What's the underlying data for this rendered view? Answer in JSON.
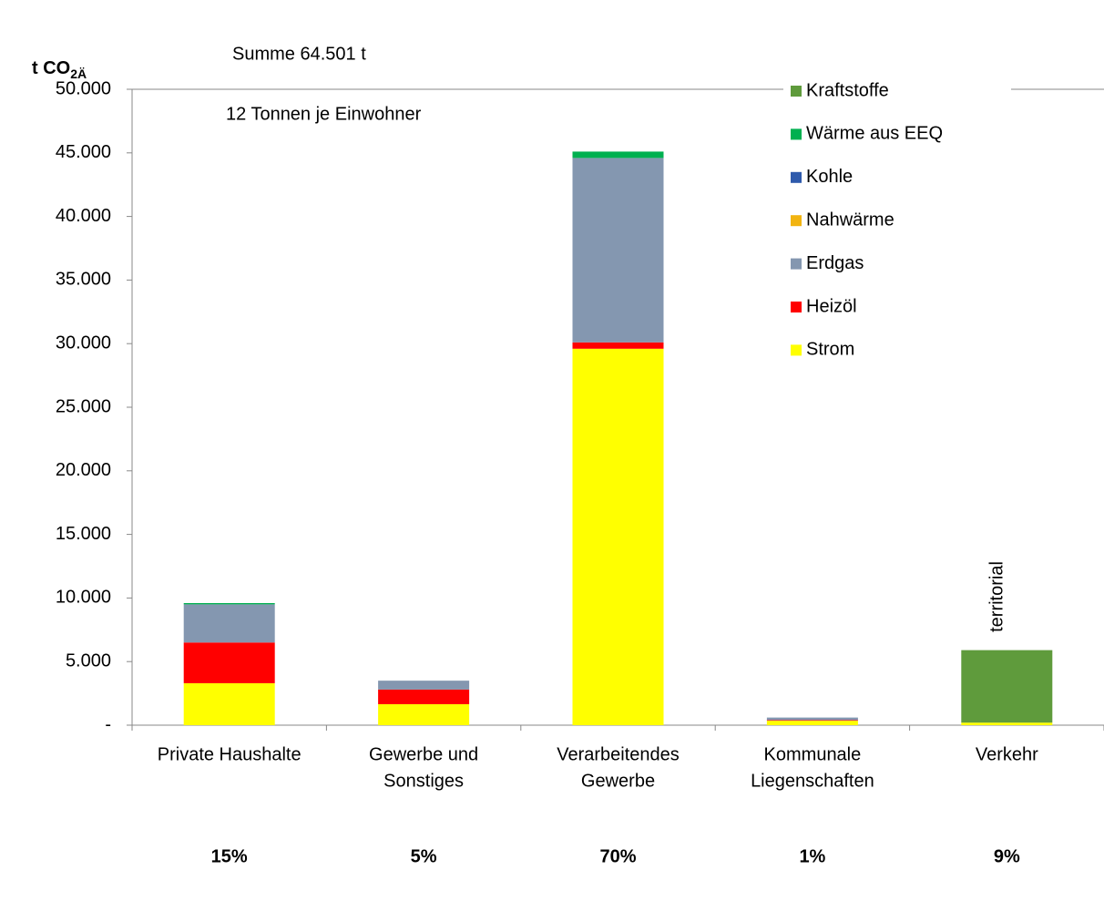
{
  "chart_data": {
    "type": "stacked_bar",
    "y_label": {
      "main": "t CO",
      "sub": "2Ä"
    },
    "annotations": {
      "total": "Summe 64.501 t",
      "per_capita": "12 Tonnen je Einwohner",
      "verkehr_note": "territorial"
    },
    "categories": [
      [
        "Private Haushalte"
      ],
      [
        "Gewerbe und",
        "Sonstiges"
      ],
      [
        "Verarbeitendes",
        "Gewerbe"
      ],
      [
        "Kommunale",
        "Liegenschaften"
      ],
      [
        "Verkehr"
      ]
    ],
    "shares": [
      "15%",
      "5%",
      "70%",
      "1%",
      "9%"
    ],
    "series": [
      {
        "name": "Strom",
        "color": "#ffff00",
        "values": [
          3300,
          1650,
          29600,
          350,
          200
        ]
      },
      {
        "name": "Heizöl",
        "color": "#ff0000",
        "values": [
          3200,
          1150,
          500,
          50,
          0
        ]
      },
      {
        "name": "Erdgas",
        "color": "#8497b0",
        "values": [
          3000,
          700,
          14500,
          200,
          0
        ]
      },
      {
        "name": "Nahwärme",
        "color": "#f2b410",
        "values": [
          0,
          0,
          0,
          0,
          0
        ]
      },
      {
        "name": "Kohle",
        "color": "#2e5aac",
        "values": [
          0,
          0,
          0,
          0,
          0
        ]
      },
      {
        "name": "Wärme aus EEQ",
        "color": "#00b050",
        "values": [
          100,
          0,
          500,
          0,
          0
        ]
      },
      {
        "name": "Kraftstoffe",
        "color": "#5f9b3c",
        "values": [
          0,
          0,
          0,
          0,
          5700
        ]
      }
    ],
    "ylim": [
      0,
      50000
    ],
    "yticks": [
      {
        "value": 0,
        "label": "-"
      },
      {
        "value": 5000,
        "label": "5.000"
      },
      {
        "value": 10000,
        "label": "10.000"
      },
      {
        "value": 15000,
        "label": "15.000"
      },
      {
        "value": 20000,
        "label": "20.000"
      },
      {
        "value": 25000,
        "label": "25.000"
      },
      {
        "value": 30000,
        "label": "30.000"
      },
      {
        "value": 35000,
        "label": "35.000"
      },
      {
        "value": 40000,
        "label": "40.000"
      },
      {
        "value": 45000,
        "label": "45.000"
      },
      {
        "value": 50000,
        "label": "50.000"
      }
    ],
    "grid": false,
    "legend": "top-right"
  }
}
